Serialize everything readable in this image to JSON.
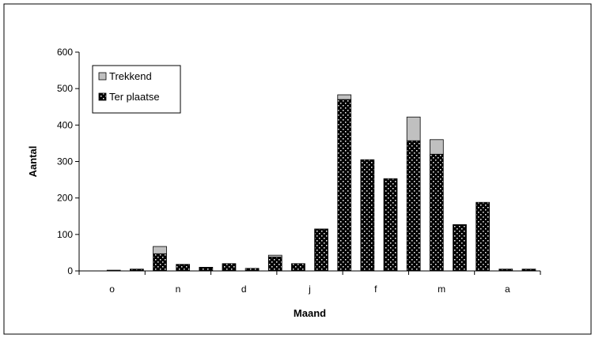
{
  "chart_data": {
    "type": "bar",
    "stacked": true,
    "title": "",
    "xlabel": "Maand",
    "ylabel": "Aantal",
    "ylim": [
      0,
      600
    ],
    "yticks": [
      0,
      100,
      200,
      300,
      400,
      500,
      600
    ],
    "grid": false,
    "legend_position": "top-left",
    "month_labels": [
      "o",
      "n",
      "d",
      "j",
      "f",
      "m",
      "a"
    ],
    "series": [
      {
        "name": "Ter plaatse",
        "color": "#000000",
        "pattern": "dotted",
        "values": [
          0,
          2,
          5,
          47,
          18,
          10,
          20,
          7,
          38,
          20,
          115,
          470,
          305,
          253,
          357,
          320,
          127,
          188,
          5,
          5
        ]
      },
      {
        "name": "Trekkend",
        "color": "#c0c0c0",
        "values": [
          0,
          0,
          0,
          20,
          0,
          0,
          0,
          0,
          5,
          0,
          0,
          13,
          0,
          0,
          65,
          40,
          0,
          0,
          0,
          0
        ]
      }
    ]
  }
}
